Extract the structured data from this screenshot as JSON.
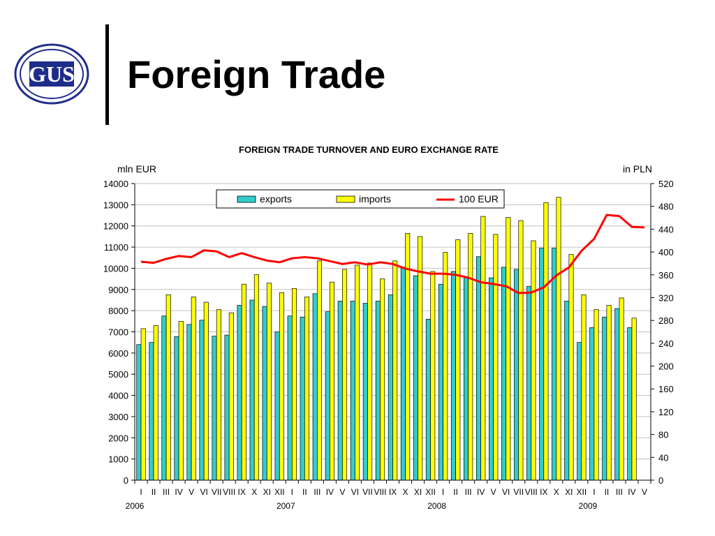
{
  "slide": {
    "title": "Foreign Trade",
    "logo_text": "GUS"
  },
  "chart_data": {
    "type": "bar",
    "title": "FOREIGN TRADE TURNOVER AND EURO EXCHANGE RATE",
    "ylabel_left": "mln EUR",
    "ylabel_right": "in PLN",
    "ylim_left": [
      0,
      14000
    ],
    "ylim_right": [
      0,
      520
    ],
    "yticks_left": [
      0,
      1000,
      2000,
      3000,
      4000,
      5000,
      6000,
      7000,
      8000,
      9000,
      10000,
      11000,
      12000,
      13000,
      14000
    ],
    "yticks_right": [
      0,
      40,
      80,
      120,
      160,
      200,
      240,
      280,
      320,
      360,
      400,
      440,
      480,
      520
    ],
    "grid": true,
    "legend_position": "top-center",
    "years": [
      {
        "label": "2006",
        "start_index": 0
      },
      {
        "label": "2007",
        "start_index": 12
      },
      {
        "label": "2008",
        "start_index": 24
      },
      {
        "label": "2009",
        "start_index": 36
      }
    ],
    "categories": [
      "I",
      "II",
      "III",
      "IV",
      "V",
      "VI",
      "VII",
      "VIII",
      "IX",
      "X",
      "XI",
      "XII",
      "I",
      "II",
      "III",
      "IV",
      "V",
      "VI",
      "VII",
      "VIII",
      "IX",
      "X",
      "XI",
      "XII",
      "I",
      "II",
      "III",
      "IV",
      "V",
      "VI",
      "VII",
      "VIII",
      "IX",
      "X",
      "XI",
      "XII",
      "I",
      "II",
      "III",
      "IV",
      "V"
    ],
    "series": [
      {
        "name": "exports",
        "kind": "bar",
        "axis": "left",
        "color": "#33cccc",
        "values": [
          6400,
          6500,
          7750,
          6780,
          7350,
          7550,
          6800,
          6850,
          8250,
          8500,
          8200,
          7000,
          7750,
          7700,
          8800,
          7950,
          8450,
          8450,
          8350,
          8450,
          8750,
          10050,
          9650,
          7600,
          9250,
          9850,
          9600,
          10550,
          9550,
          10050,
          9950,
          9150,
          10950,
          10950,
          8450,
          6500,
          7200,
          7700,
          8100,
          7200,
          null
        ]
      },
      {
        "name": "imports",
        "kind": "bar",
        "axis": "left",
        "color": "#ffff00",
        "values": [
          7150,
          7300,
          8750,
          7500,
          8650,
          8400,
          8050,
          7900,
          9250,
          9700,
          9300,
          8850,
          9050,
          8650,
          10350,
          9350,
          9950,
          10150,
          10250,
          9500,
          10350,
          11650,
          11500,
          9850,
          10750,
          11350,
          11650,
          12450,
          11600,
          12400,
          12250,
          11300,
          13100,
          13350,
          10650,
          8750,
          8050,
          8250,
          8600,
          7650,
          null
        ]
      },
      {
        "name": "100 EUR",
        "kind": "line",
        "axis": "right",
        "color": "#ff0000",
        "values": [
          383,
          381,
          388,
          393,
          391,
          403,
          401,
          391,
          398,
          391,
          385,
          382,
          389,
          391,
          389,
          384,
          379,
          382,
          378,
          382,
          379,
          371,
          366,
          362,
          362,
          360,
          355,
          347,
          344,
          340,
          328,
          329,
          338,
          359,
          373,
          402,
          423,
          465,
          463,
          444,
          443
        ]
      }
    ]
  }
}
